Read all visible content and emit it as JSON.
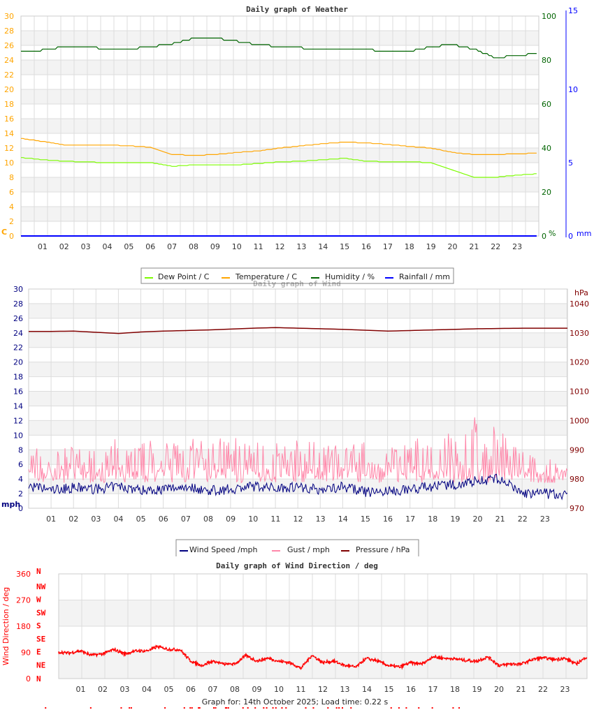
{
  "colors": {
    "temp": "#ffa500",
    "dew": "#7cfc00",
    "hum": "#006400",
    "rain": "#0000ff",
    "wind": "#000080",
    "gust": "#ff88aa",
    "press": "#800000",
    "dir": "#ff0000",
    "grid": "#dddddd",
    "band": "#f3f3f3"
  },
  "chart_data": [
    {
      "type": "line",
      "title": "Daily graph of Weather",
      "xlabel": "",
      "hours": [
        "01",
        "02",
        "03",
        "04",
        "05",
        "06",
        "07",
        "08",
        "09",
        "10",
        "11",
        "12",
        "13",
        "14",
        "15",
        "16",
        "17",
        "18",
        "19",
        "20",
        "21",
        "22",
        "23"
      ],
      "left_axis": {
        "unit": "C",
        "range": [
          0,
          30
        ],
        "ticks": [
          0,
          2,
          4,
          6,
          8,
          10,
          12,
          14,
          16,
          18,
          20,
          22,
          24,
          26,
          28,
          30
        ]
      },
      "right_axis_humidity": {
        "unit": "%",
        "range": [
          0,
          100
        ],
        "ticks": [
          0,
          20,
          40,
          60,
          80,
          100
        ]
      },
      "right_axis_rain": {
        "unit": "mm",
        "range": [
          0,
          15
        ],
        "ticks": [
          0,
          5,
          10,
          15
        ]
      },
      "x_hours": [
        0,
        1,
        2,
        3,
        4,
        5,
        6,
        7,
        8,
        9,
        10,
        11,
        12,
        13,
        14,
        15,
        16,
        17,
        18,
        19,
        20,
        21,
        22,
        23,
        24
      ],
      "series": [
        {
          "name": "Dew Point / C",
          "axis": "left",
          "values": [
            10.7,
            10.4,
            10.2,
            10.1,
            10,
            10,
            10,
            9.5,
            9.7,
            9.7,
            9.7,
            9.9,
            10.1,
            10.2,
            10.4,
            10.6,
            10.2,
            10.1,
            10.1,
            10,
            9,
            8,
            8,
            8.3,
            8.5
          ]
        },
        {
          "name": "Temperature / C",
          "axis": "left",
          "values": [
            13.3,
            12.9,
            12.4,
            12.4,
            12.4,
            12.3,
            12.1,
            11.1,
            11,
            11.1,
            11.4,
            11.6,
            12,
            12.3,
            12.6,
            12.8,
            12.7,
            12.5,
            12.2,
            12,
            11.4,
            11.1,
            11.1,
            11.2,
            11.3
          ]
        },
        {
          "name": "Humidity / %",
          "axis": "humidity",
          "values": [
            84,
            84.5,
            86,
            86,
            85,
            85,
            86,
            87.5,
            90,
            90,
            88.5,
            87,
            86,
            85.5,
            85,
            85,
            85,
            83.5,
            84,
            86,
            87,
            85,
            81,
            82,
            83
          ]
        },
        {
          "name": "Rainfall / mm",
          "axis": "rain",
          "values": [
            0,
            0,
            0,
            0,
            0,
            0,
            0,
            0,
            0,
            0,
            0,
            0,
            0,
            0,
            0,
            0,
            0,
            0,
            0,
            0,
            0,
            0,
            0,
            0,
            0
          ]
        }
      ]
    },
    {
      "type": "line",
      "title": "Daily graph of Wind",
      "hours": [
        "01",
        "02",
        "03",
        "04",
        "05",
        "06",
        "07",
        "08",
        "09",
        "10",
        "11",
        "12",
        "13",
        "14",
        "15",
        "16",
        "17",
        "18",
        "19",
        "20",
        "21",
        "22",
        "23"
      ],
      "left_axis": {
        "unit": "mph",
        "range": [
          0,
          30
        ],
        "ticks": [
          0,
          2,
          4,
          6,
          8,
          10,
          12,
          14,
          16,
          18,
          20,
          22,
          24,
          26,
          28,
          30
        ]
      },
      "right_axis": {
        "unit": "hPa",
        "range": [
          970,
          1045
        ],
        "ticks": [
          970,
          980,
          990,
          1000,
          1010,
          1020,
          1030,
          1040
        ]
      },
      "x_hours": [
        0,
        1,
        2,
        3,
        4,
        5,
        6,
        7,
        8,
        9,
        10,
        11,
        12,
        13,
        14,
        15,
        16,
        17,
        18,
        19,
        20,
        21,
        22,
        23,
        24
      ],
      "series": [
        {
          "name": "Wind Speed /mph",
          "axis": "left",
          "values": [
            3,
            2.5,
            2.8,
            2.6,
            3,
            2.5,
            2.6,
            3,
            2.4,
            2.6,
            3,
            2.8,
            3,
            2.5,
            3,
            2.2,
            2.3,
            2.6,
            3,
            3.2,
            3.8,
            4,
            2,
            2,
            1.8
          ]
        },
        {
          "name": "Gust / mph",
          "axis": "left",
          "values": [
            9,
            8,
            9,
            8,
            10,
            9,
            10,
            10,
            9,
            11,
            10,
            9,
            10,
            9,
            10,
            9,
            8,
            10,
            10,
            11,
            13,
            12,
            8,
            7,
            6
          ]
        },
        {
          "name": "Pressure / hPa",
          "axis": "right",
          "values": [
            1030.5,
            1030.5,
            1030.6,
            1030.2,
            1029.8,
            1030.3,
            1030.6,
            1030.8,
            1031,
            1031.3,
            1031.6,
            1031.8,
            1031.6,
            1031.4,
            1031.2,
            1030.9,
            1030.6,
            1030.8,
            1031,
            1031.2,
            1031.4,
            1031.5,
            1031.6,
            1031.6,
            1031.6
          ]
        }
      ]
    },
    {
      "type": "scatter",
      "title": "Daily graph of Wind Direction / deg",
      "ylabel": "Wind Direction / deg",
      "hours": [
        "01",
        "02",
        "03",
        "04",
        "05",
        "06",
        "07",
        "08",
        "09",
        "10",
        "11",
        "12",
        "13",
        "14",
        "15",
        "16",
        "17",
        "18",
        "19",
        "20",
        "21",
        "22",
        "23"
      ],
      "yrange": [
        0,
        360
      ],
      "ticks": [
        0,
        90,
        180,
        270,
        360
      ],
      "compass": [
        "N",
        "NW",
        "W",
        "SW",
        "S",
        "SE",
        "E",
        "NE",
        "N"
      ],
      "x_hours": [
        0,
        0.5,
        1,
        1.5,
        2,
        2.5,
        3,
        3.5,
        4,
        4.5,
        5,
        5.5,
        6,
        6.5,
        7,
        7.5,
        8,
        8.5,
        9,
        9.5,
        10,
        10.5,
        11,
        11.5,
        12,
        12.5,
        13,
        13.5,
        14,
        14.5,
        15,
        15.5,
        16,
        16.5,
        17,
        17.5,
        18,
        18.5,
        19,
        19.5,
        20,
        20.5,
        21,
        21.5,
        22,
        22.5,
        23,
        23.5,
        24
      ],
      "values": [
        90,
        88,
        95,
        80,
        85,
        100,
        85,
        95,
        95,
        110,
        100,
        100,
        60,
        45,
        60,
        50,
        50,
        80,
        60,
        70,
        60,
        55,
        35,
        80,
        55,
        60,
        45,
        40,
        70,
        60,
        45,
        40,
        55,
        50,
        75,
        70,
        68,
        62,
        60,
        75,
        45,
        50,
        50,
        65,
        72,
        65,
        70,
        50,
        75
      ]
    }
  ],
  "legend1": [
    "Dew Point / C",
    "Temperature / C",
    "Humidity / %",
    "Rainfall / mm"
  ],
  "legend2": [
    "Wind Speed /mph",
    "Gust / mph",
    "Pressure / hPa"
  ],
  "footer": "Graph for: 14th October 2025; Load time: 0.22 s"
}
